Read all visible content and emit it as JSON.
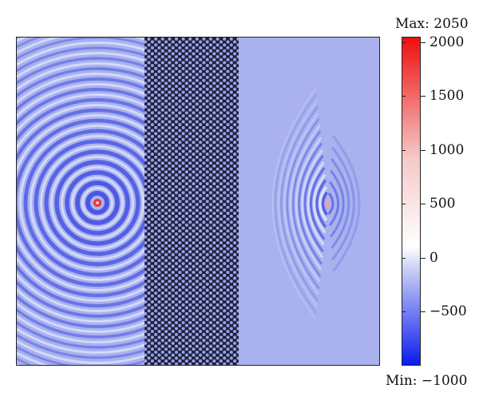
{
  "colorbar": {
    "max_label": "Max: 2050",
    "min_label": "Min: −1000",
    "max_value": 2050,
    "min_value": -1000,
    "ticks": [
      {
        "value": 2000,
        "label": "2000"
      },
      {
        "value": 1500,
        "label": "1500"
      },
      {
        "value": 1000,
        "label": "1000"
      },
      {
        "value": 500,
        "label": "500"
      },
      {
        "value": 0,
        "label": "0"
      },
      {
        "value": -500,
        "label": "−500"
      }
    ],
    "colors": [
      "#0a1bf0",
      "#ffffff",
      "#f00e0e"
    ]
  },
  "field": {
    "background_color": "#a9b2ee",
    "crystal_color": "#1d1f3a",
    "hole_color": "#9aa3e6",
    "source_color": "#ff2a2a"
  }
}
